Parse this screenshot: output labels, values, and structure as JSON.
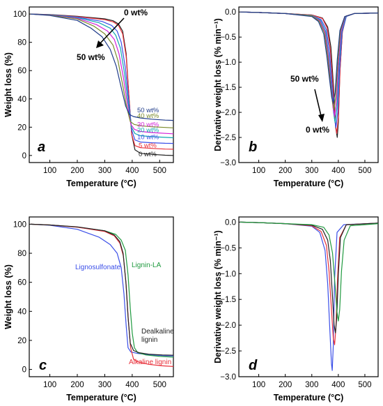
{
  "colors": {
    "black": "#222222",
    "navy": "#1f3b8a",
    "olive": "#7a8a2a",
    "magenta": "#d21fd8",
    "teal": "#10a8b0",
    "blue": "#3a4ee8",
    "red": "#e8303a",
    "green": "#1f9a3f"
  },
  "chart_data": [
    {
      "panel_label": "a",
      "type": "line",
      "xlabel": "Temperature (°C)",
      "ylabel": "Weight loss (%)",
      "xlim": [
        25,
        550
      ],
      "ylim": [
        -5,
        105
      ],
      "xticks": [
        100,
        200,
        300,
        400,
        500
      ],
      "yticks": [
        0,
        20,
        40,
        60,
        80,
        100
      ],
      "annotations": [
        {
          "text": "0 wt%",
          "role": "arrow-end-top"
        },
        {
          "text": "50 wt%",
          "role": "arrow-end-bottom"
        }
      ],
      "series": [
        {
          "name": "0 wt%",
          "color": "black",
          "x": [
            30,
            100,
            200,
            300,
            330,
            350,
            365,
            378,
            388,
            398,
            410,
            430,
            470,
            520,
            550
          ],
          "y": [
            100,
            99.6,
            98.4,
            96.6,
            95.3,
            93,
            88,
            72,
            42,
            15,
            4,
            1.5,
            0.8,
            0.2,
            0
          ]
        },
        {
          "name": "5 wt%",
          "color": "red",
          "x": [
            30,
            100,
            200,
            300,
            330,
            350,
            365,
            378,
            388,
            398,
            410,
            430,
            470,
            520,
            550
          ],
          "y": [
            100,
            99.5,
            98.2,
            96,
            94.5,
            92,
            86,
            70,
            42,
            15,
            7,
            5.5,
            5,
            4.5,
            4.4
          ]
        },
        {
          "name": "10 wt%",
          "color": "blue",
          "x": [
            30,
            100,
            200,
            290,
            325,
            345,
            360,
            375,
            387,
            398,
            410,
            430,
            470,
            520,
            550
          ],
          "y": [
            100,
            99.5,
            97.8,
            94.8,
            92,
            88,
            80,
            62,
            40,
            18,
            11,
            9.5,
            9,
            8.6,
            8.5
          ]
        },
        {
          "name": "20 wt%",
          "color": "teal",
          "x": [
            30,
            100,
            200,
            280,
            320,
            340,
            357,
            372,
            385,
            397,
            410,
            430,
            470,
            520,
            550
          ],
          "y": [
            100,
            99.4,
            97.5,
            93.8,
            90,
            85,
            76,
            58,
            38,
            20,
            15.5,
            14,
            13.3,
            12.8,
            12.5
          ]
        },
        {
          "name": "30 wt%",
          "color": "magenta",
          "x": [
            30,
            100,
            200,
            270,
            310,
            335,
            352,
            368,
            382,
            395,
            408,
            430,
            470,
            520,
            550
          ],
          "y": [
            100,
            99.3,
            97,
            92.5,
            88,
            82,
            72,
            55,
            37,
            22,
            18.5,
            17,
            16.2,
            15.6,
            15.3
          ]
        },
        {
          "name": "40 wt%",
          "color": "olive",
          "x": [
            30,
            100,
            200,
            260,
            300,
            330,
            348,
            365,
            380,
            393,
            407,
            430,
            470,
            520,
            550
          ],
          "y": [
            100,
            99.2,
            96.5,
            91.5,
            86,
            78,
            67,
            50,
            34,
            24,
            22,
            21,
            20.3,
            19.8,
            19.5
          ]
        },
        {
          "name": "50 wt%",
          "color": "navy",
          "x": [
            30,
            100,
            200,
            250,
            290,
            320,
            342,
            360,
            376,
            390,
            405,
            430,
            470,
            520,
            550
          ],
          "y": [
            100,
            99,
            95.5,
            90,
            84,
            75,
            63,
            48,
            35,
            29,
            27.5,
            26.5,
            25.7,
            25,
            24.8
          ]
        }
      ]
    },
    {
      "panel_label": "b",
      "type": "line",
      "xlabel": "Temperature (°C)",
      "ylabel": "Derivative weight loss (% min⁻¹)",
      "xlim": [
        25,
        550
      ],
      "ylim": [
        -3.0,
        0.1
      ],
      "xticks": [
        100,
        200,
        300,
        400,
        500
      ],
      "yticks": [
        0.0,
        -0.5,
        -1.0,
        -1.5,
        -2.0,
        -2.5,
        -3.0
      ],
      "annotations": [
        {
          "text": "50 wt%",
          "role": "arrow-start"
        },
        {
          "text": "0 wt%",
          "role": "arrow-end"
        }
      ],
      "series": [
        {
          "name": "0 wt%",
          "color": "black",
          "x": [
            30,
            100,
            200,
            300,
            340,
            360,
            372,
            382,
            390,
            396,
            400,
            406,
            415,
            430,
            460,
            550
          ],
          "y": [
            0,
            -0.01,
            -0.03,
            -0.06,
            -0.12,
            -0.3,
            -0.7,
            -1.5,
            -2.3,
            -2.5,
            -2.2,
            -1.2,
            -0.4,
            -0.08,
            -0.03,
            -0.02
          ]
        },
        {
          "name": "5 wt%",
          "color": "red",
          "x": [
            30,
            100,
            200,
            300,
            340,
            358,
            370,
            380,
            388,
            394,
            400,
            407,
            415,
            430,
            460,
            550
          ],
          "y": [
            0,
            -0.01,
            -0.03,
            -0.06,
            -0.13,
            -0.32,
            -0.75,
            -1.5,
            -2.2,
            -2.42,
            -2.1,
            -1.1,
            -0.4,
            -0.08,
            -0.03,
            -0.02
          ]
        },
        {
          "name": "10 wt%",
          "color": "blue",
          "x": [
            30,
            100,
            200,
            300,
            335,
            355,
            367,
            377,
            385,
            391,
            398,
            405,
            414,
            430,
            460,
            550
          ],
          "y": [
            0,
            -0.01,
            -0.03,
            -0.07,
            -0.15,
            -0.35,
            -0.8,
            -1.5,
            -2.1,
            -2.3,
            -2.0,
            -1.1,
            -0.4,
            -0.09,
            -0.03,
            -0.02
          ]
        },
        {
          "name": "20 wt%",
          "color": "teal",
          "x": [
            30,
            100,
            200,
            300,
            332,
            352,
            364,
            374,
            382,
            388,
            395,
            402,
            412,
            428,
            460,
            550
          ],
          "y": [
            0,
            -0.01,
            -0.03,
            -0.07,
            -0.16,
            -0.38,
            -0.85,
            -1.5,
            -2.0,
            -2.2,
            -1.9,
            -1.1,
            -0.4,
            -0.09,
            -0.03,
            -0.02
          ]
        },
        {
          "name": "30 wt%",
          "color": "magenta",
          "x": [
            30,
            100,
            200,
            300,
            330,
            350,
            362,
            372,
            380,
            386,
            393,
            400,
            410,
            426,
            460,
            550
          ],
          "y": [
            0,
            -0.01,
            -0.03,
            -0.08,
            -0.17,
            -0.4,
            -0.85,
            -1.45,
            -1.9,
            -2.08,
            -1.8,
            -1.05,
            -0.4,
            -0.09,
            -0.03,
            -0.02
          ]
        },
        {
          "name": "40 wt%",
          "color": "olive",
          "x": [
            30,
            100,
            200,
            300,
            328,
            348,
            360,
            370,
            378,
            384,
            390,
            398,
            408,
            425,
            460,
            550
          ],
          "y": [
            0,
            -0.01,
            -0.03,
            -0.08,
            -0.18,
            -0.42,
            -0.88,
            -1.4,
            -1.8,
            -1.95,
            -1.7,
            -1.0,
            -0.38,
            -0.09,
            -0.03,
            -0.02
          ]
        },
        {
          "name": "50 wt%",
          "color": "navy",
          "x": [
            30,
            100,
            200,
            300,
            325,
            345,
            357,
            367,
            375,
            381,
            388,
            396,
            406,
            424,
            460,
            550
          ],
          "y": [
            0,
            -0.01,
            -0.03,
            -0.09,
            -0.19,
            -0.44,
            -0.9,
            -1.35,
            -1.7,
            -1.82,
            -1.6,
            -0.95,
            -0.37,
            -0.09,
            -0.03,
            -0.02
          ]
        }
      ]
    },
    {
      "panel_label": "c",
      "type": "line",
      "xlabel": "Temperature (°C)",
      "ylabel": "Weight loss (%)",
      "xlim": [
        25,
        550
      ],
      "ylim": [
        -5,
        105
      ],
      "xticks": [
        100,
        200,
        300,
        400,
        500
      ],
      "yticks": [
        0,
        20,
        40,
        60,
        80,
        100
      ],
      "series": [
        {
          "name": "Lignosulfonate",
          "color": "blue",
          "x": [
            30,
            100,
            200,
            280,
            320,
            345,
            360,
            370,
            378,
            385,
            395,
            420,
            470,
            520,
            550
          ],
          "y": [
            100,
            99.3,
            96.5,
            91,
            86,
            80,
            70,
            52,
            30,
            15,
            12,
            11,
            10,
            9.5,
            9.3
          ]
        },
        {
          "name": "Lignin-LA",
          "color": "green",
          "x": [
            30,
            100,
            200,
            300,
            340,
            360,
            375,
            385,
            393,
            400,
            408,
            420,
            450,
            500,
            550
          ],
          "y": [
            100,
            99.5,
            98,
            95.5,
            93,
            89,
            82,
            65,
            42,
            25,
            15,
            11.5,
            10,
            9,
            8.5
          ]
        },
        {
          "name": "Alkaline lignin",
          "color": "red",
          "x": [
            30,
            100,
            200,
            300,
            335,
            355,
            368,
            378,
            386,
            394,
            405,
            425,
            460,
            510,
            550
          ],
          "y": [
            100,
            99.5,
            98,
            95,
            92,
            87,
            78,
            58,
            34,
            15,
            7,
            5,
            3.5,
            2.5,
            2
          ]
        },
        {
          "name": "Dealkaline lignin",
          "color": "black",
          "x": [
            30,
            100,
            200,
            300,
            335,
            355,
            367,
            377,
            385,
            393,
            405,
            425,
            460,
            510,
            550
          ],
          "y": [
            100,
            99.5,
            98.2,
            95.5,
            92.5,
            88,
            80,
            60,
            36,
            18,
            13,
            11.5,
            10.5,
            10,
            9.8
          ]
        }
      ]
    },
    {
      "panel_label": "d",
      "type": "line",
      "xlabel": "Temperature (°C)",
      "ylabel": "Derivative weight loss (% min⁻¹)",
      "xlim": [
        25,
        550
      ],
      "ylim": [
        -3.0,
        0.1
      ],
      "xticks": [
        100,
        200,
        300,
        400,
        500
      ],
      "yticks": [
        0.0,
        -0.5,
        -1.0,
        -1.5,
        -2.0,
        -2.5,
        -3.0
      ],
      "series": [
        {
          "name": "Lignosulfonate",
          "color": "blue",
          "x": [
            30,
            100,
            200,
            300,
            330,
            350,
            360,
            368,
            374,
            377,
            381,
            386,
            395,
            420,
            550
          ],
          "y": [
            0,
            -0.01,
            -0.03,
            -0.08,
            -0.2,
            -0.55,
            -1.2,
            -2.1,
            -2.75,
            -2.88,
            -2.4,
            -1.1,
            -0.2,
            -0.05,
            -0.02
          ]
        },
        {
          "name": "Alkaline lignin",
          "color": "red",
          "x": [
            30,
            100,
            200,
            300,
            335,
            355,
            365,
            374,
            381,
            386,
            391,
            397,
            405,
            430,
            550
          ],
          "y": [
            0,
            -0.01,
            -0.03,
            -0.07,
            -0.18,
            -0.45,
            -0.95,
            -1.7,
            -2.25,
            -2.38,
            -2.05,
            -1.1,
            -0.3,
            -0.05,
            -0.02
          ]
        },
        {
          "name": "Dealkaline lignin",
          "color": "black",
          "x": [
            30,
            100,
            200,
            300,
            340,
            360,
            370,
            378,
            384,
            389,
            394,
            400,
            408,
            430,
            550
          ],
          "y": [
            0,
            -0.01,
            -0.03,
            -0.06,
            -0.14,
            -0.35,
            -0.75,
            -1.45,
            -2.0,
            -2.15,
            -1.85,
            -1.0,
            -0.3,
            -0.05,
            -0.02
          ]
        },
        {
          "name": "Lignin-LA",
          "color": "green",
          "x": [
            30,
            100,
            200,
            300,
            345,
            365,
            378,
            388,
            395,
            400,
            405,
            412,
            422,
            445,
            550
          ],
          "y": [
            0,
            -0.01,
            -0.03,
            -0.05,
            -0.1,
            -0.25,
            -0.6,
            -1.25,
            -1.75,
            -1.92,
            -1.7,
            -0.95,
            -0.35,
            -0.07,
            -0.03
          ]
        }
      ]
    }
  ]
}
